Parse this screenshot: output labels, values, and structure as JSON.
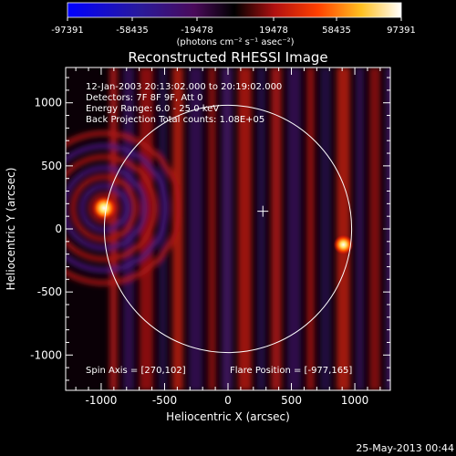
{
  "colorbar": {
    "ticks": [
      "-97391",
      "-58435",
      "-19478",
      "19478",
      "58435",
      "97391"
    ],
    "units_label": "(photons cm⁻² s⁻¹ asec⁻²)",
    "colors": [
      "#0000ff",
      "#3a1a8a",
      "#5a0a4a",
      "#000000",
      "#cc1010",
      "#ff8800",
      "#ffff40",
      "#ffffff"
    ]
  },
  "chart_data": {
    "type": "heatmap",
    "title": "Reconstructed RHESSI Image",
    "xlabel": "Heliocentric X (arcsec)",
    "ylabel": "Heliocentric Y (arcsec)",
    "xlim": [
      -1280,
      1280
    ],
    "ylim": [
      -1280,
      1280
    ],
    "xticks": [
      -1000,
      -500,
      0,
      500,
      1000
    ],
    "yticks": [
      -1000,
      -500,
      0,
      500,
      1000
    ],
    "xtick_labels": [
      "-1000",
      "-500",
      "0",
      "500",
      "1000"
    ],
    "ytick_labels": [
      "-1000",
      "-500",
      "0",
      "500",
      "1000"
    ],
    "solar_limb_radius": 975,
    "center_marker": [
      275,
      140
    ],
    "sources": [
      {
        "x": -977,
        "y": 165,
        "intensity": 97391
      },
      {
        "x": 910,
        "y": -125,
        "intensity": 58000
      }
    ],
    "info_lines": [
      "12-Jan-2003 20:13:02.000 to 20:19:02.000",
      "Detectors: 7F 8F 9F, Att 0",
      "Energy Range: 6.0 - 25.0 keV",
      "Back Projection    Total counts: 1.08E+05"
    ],
    "spin_axis": "Spin Axis = [270,102]",
    "flare_position": "Flare Position = [-977,165]"
  },
  "footer": {
    "date": "25-May-2013 00:44"
  }
}
